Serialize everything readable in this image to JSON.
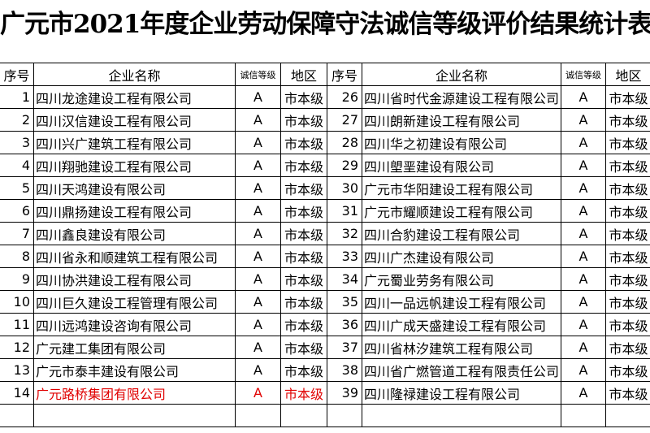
{
  "title": "广元市2021年度企业劳动保障守法诚信等级评价结果统计表",
  "table": {
    "header": [
      "序号",
      "企业名称",
      "诚信等级",
      "地区",
      "序号",
      "企业名称",
      "诚信等级",
      "地区"
    ],
    "rows": [
      [
        "1",
        "四川龙途建设工程有限公司",
        "A",
        "市本级",
        "26",
        "四川省时代金源建设工程有限公司",
        "A",
        "市本级"
      ],
      [
        "2",
        "四川汉信建设工程有限公司",
        "A",
        "市本级",
        "27",
        "四川朗新建设工程有限公司",
        "A",
        "市本级"
      ],
      [
        "3",
        "四川兴广建筑工程有限公司",
        "A",
        "市本级",
        "28",
        "四川华之初建设有限公司",
        "A",
        "市本级"
      ],
      [
        "4",
        "四川翔驰建设工程有限公司",
        "A",
        "市本级",
        "29",
        "四川塱垩建设有限公司",
        "A",
        "市本级"
      ],
      [
        "5",
        "四川天鸿建设有限公司",
        "A",
        "市本级",
        "30",
        "广元市华阳建设工程有限公司",
        "A",
        "市本级"
      ],
      [
        "6",
        "四川鼎扬建设工程有限公司",
        "A",
        "市本级",
        "31",
        "广元市耀顺建设工程有限公司",
        "A",
        "市本级"
      ],
      [
        "7",
        "四川鑫良建设有限公司",
        "A",
        "市本级",
        "32",
        "四川合豹建设工程有限公司",
        "A",
        "市本级"
      ],
      [
        "8",
        "四川省永和顺建筑工程有限公司",
        "A",
        "市本级",
        "33",
        "四川广杰建设有限公司",
        "A",
        "市本级"
      ],
      [
        "9",
        "四川协洪建设工程有限公司",
        "A",
        "市本级",
        "34",
        "广元蜀业劳务有限公司",
        "A",
        "市本级"
      ],
      [
        "10",
        "四川巨久建设工程管理有限公司",
        "A",
        "市本级",
        "35",
        "四川一品远帆建设工程有限公司",
        "A",
        "市本级"
      ],
      [
        "11",
        "四川远鸿建设咨询有限公司",
        "A",
        "市本级",
        "36",
        "四川广成天盛建设工程有限公司",
        "A",
        "市本级"
      ],
      [
        "12",
        "广元建工集团有限公司",
        "A",
        "市本级",
        "37",
        "四川省林汐建筑工程有限公司",
        "A",
        "市本级"
      ],
      [
        "13",
        "广元市泰丰建设有限公司",
        "A",
        "市本级",
        "38",
        "四川省广燃管道工程有限责任公司",
        "A",
        "市本级"
      ],
      [
        "14",
        "广元路桥集团有限公司",
        "A",
        "市本级",
        "39",
        "四川隆禄建设工程有限公司",
        "A",
        "市本级"
      ]
    ]
  }
}
